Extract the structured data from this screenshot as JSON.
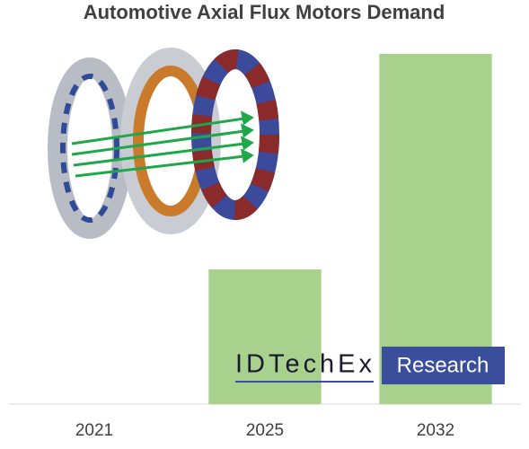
{
  "chart_data": {
    "type": "bar",
    "title": "Automotive Axial Flux Motors Demand",
    "categories": [
      "2021",
      "2025",
      "2032"
    ],
    "values": [
      0,
      150,
      390
    ],
    "color": "#a9d18e",
    "ylim": [
      0,
      400
    ]
  },
  "logo": {
    "name": "IDTechEx",
    "tag": "Research"
  }
}
